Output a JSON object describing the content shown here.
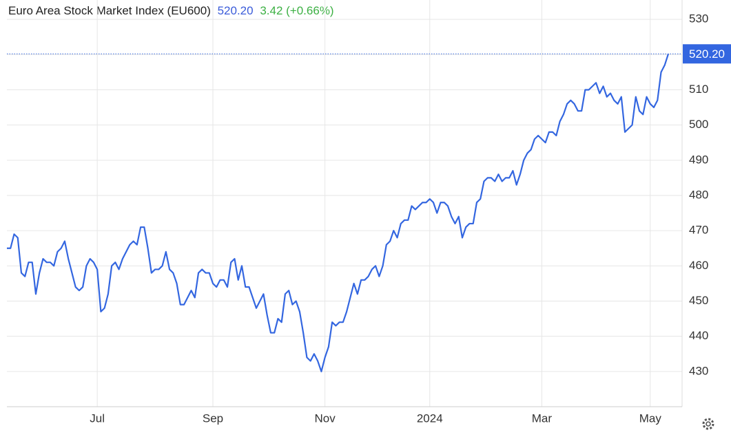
{
  "chart_data": {
    "type": "line",
    "title": "Euro Area Stock Market Index (EU600)",
    "last_price": "520.20",
    "change": "3.42 (+0.66%)",
    "categories": [
      null,
      null,
      null,
      null,
      null,
      null,
      null,
      null,
      null,
      null,
      null,
      null,
      null,
      null,
      null,
      null,
      null,
      null,
      null,
      null,
      null,
      null,
      null,
      null,
      null,
      "Jul",
      null,
      null,
      null,
      null,
      null,
      null,
      null,
      null,
      null,
      null,
      null,
      null,
      null,
      null,
      null,
      null,
      null,
      null,
      null,
      null,
      null,
      null,
      null,
      null,
      null,
      null,
      null,
      null,
      null,
      null,
      null,
      "Sep",
      null,
      null,
      null,
      null,
      null,
      null,
      null,
      null,
      null,
      null,
      null,
      null,
      null,
      null,
      null,
      null,
      null,
      null,
      null,
      null,
      null,
      null,
      null,
      null,
      null,
      null,
      null,
      null,
      null,
      null,
      "Nov",
      null,
      null,
      null,
      null,
      null,
      null,
      null,
      null,
      null,
      null,
      null,
      null,
      null,
      null,
      null,
      null,
      null,
      null,
      null,
      null,
      null,
      null,
      null,
      null,
      null,
      null,
      null,
      null,
      "2024",
      null,
      null,
      null,
      null,
      null,
      null,
      null,
      null,
      null,
      null,
      null,
      null,
      null,
      null,
      null,
      null,
      null,
      null,
      null,
      null,
      null,
      null,
      null,
      null,
      null,
      null,
      null,
      null,
      null,
      null,
      "Mar",
      null,
      null,
      null,
      null,
      null,
      null,
      null,
      null,
      null,
      null,
      null,
      null,
      null,
      null,
      null,
      null,
      null,
      null,
      null,
      null,
      null,
      null,
      null,
      null,
      null,
      null,
      null,
      null,
      null,
      "May",
      null,
      null,
      null,
      null,
      null
    ],
    "series": [
      {
        "name": "EU600",
        "color": "#3366e0",
        "values": [
          465,
          465,
          469,
          468,
          458,
          457,
          461,
          461,
          452,
          458,
          462,
          461,
          461,
          460,
          464,
          465,
          467,
          462,
          458,
          454,
          453,
          454,
          460,
          462,
          461,
          459,
          447,
          448,
          452,
          460,
          461,
          459,
          462,
          464,
          466,
          467,
          466,
          471,
          471,
          465,
          458,
          459,
          459,
          460,
          464,
          459,
          458,
          455,
          449,
          449,
          451,
          453,
          451,
          458,
          459,
          458,
          458,
          455,
          454,
          456,
          456,
          454,
          461,
          462,
          456,
          460,
          454,
          454,
          451,
          448,
          450,
          452,
          446,
          441,
          441,
          445,
          444,
          452,
          453,
          449,
          450,
          447,
          441,
          434,
          433,
          435,
          433,
          430,
          434,
          437,
          444,
          443,
          444,
          444,
          447,
          451,
          455,
          452,
          456,
          456,
          457,
          459,
          460,
          457,
          460,
          466,
          467,
          470,
          468,
          472,
          473,
          473,
          477,
          476,
          477,
          478,
          478,
          479,
          478,
          475,
          478,
          478,
          477,
          474,
          472,
          474,
          468,
          471,
          472,
          472,
          478,
          479,
          484,
          485,
          485,
          484,
          486,
          484,
          485,
          485,
          487,
          483,
          486,
          490,
          492,
          493,
          496,
          497,
          496,
          495,
          498,
          498,
          497,
          501,
          503,
          506,
          507,
          506,
          504,
          504,
          510,
          510,
          511,
          512,
          509,
          511,
          508,
          509,
          507,
          506,
          508,
          498,
          499,
          500,
          508,
          504,
          503,
          508,
          506,
          505,
          507,
          515,
          517,
          520.2
        ]
      }
    ],
    "ylim": [
      420,
      535.5
    ],
    "yticks": [
      430,
      440,
      450,
      460,
      470,
      480,
      490,
      500,
      510,
      520,
      530
    ],
    "grid": true
  }
}
